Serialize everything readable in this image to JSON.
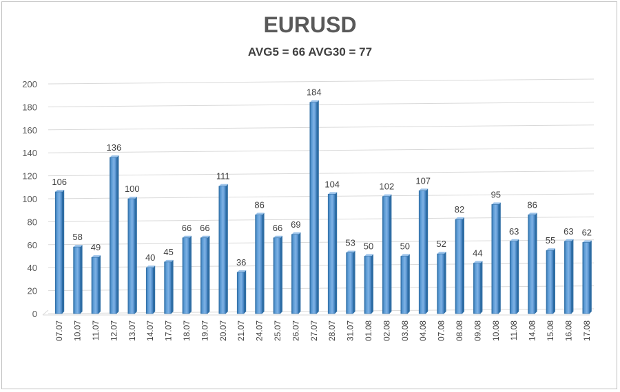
{
  "chart_data": {
    "type": "bar",
    "title": "EURUSD",
    "subtitle": "AVG5 = 66 AVG30 = 77",
    "categories": [
      "07.07",
      "10.07",
      "11.07",
      "12.07",
      "13.07",
      "14.07",
      "17.07",
      "18.07",
      "19.07",
      "20.07",
      "21.07",
      "24.07",
      "25.07",
      "26.07",
      "27.07",
      "28.07",
      "31.07",
      "01.08",
      "02.08",
      "03.08",
      "04.08",
      "07.08",
      "08.08",
      "09.08",
      "10.08",
      "11.08",
      "14.08",
      "15.08",
      "16.08",
      "17.08"
    ],
    "values": [
      106,
      58,
      49,
      136,
      100,
      40,
      45,
      66,
      66,
      111,
      36,
      86,
      66,
      69,
      184,
      104,
      53,
      50,
      102,
      50,
      107,
      52,
      82,
      44,
      95,
      63,
      86,
      55,
      63,
      62
    ],
    "ylim": [
      0,
      200
    ],
    "yticks": [
      0,
      20,
      40,
      60,
      80,
      100,
      120,
      140,
      160,
      180,
      200
    ],
    "grid": true,
    "legend": "none",
    "bar_color": "#5b9bd5",
    "bar_dark_color": "#2e6da4",
    "data_labels": true
  }
}
